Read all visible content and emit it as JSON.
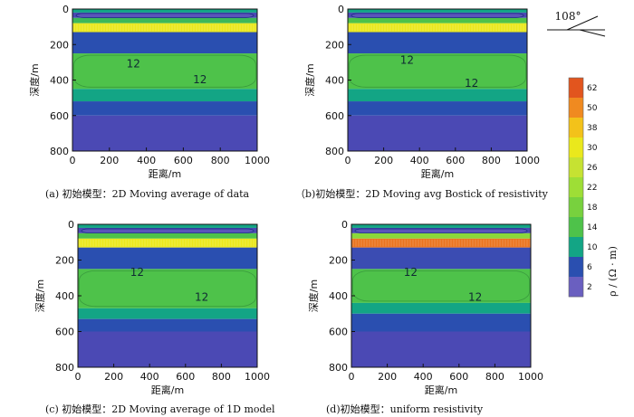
{
  "chart_data": [
    {
      "type": "heatmap",
      "caption": "(a) 初始模型：2D Moving average of data",
      "xlabel": "距离/m",
      "ylabel": "深度/m",
      "xlim": [
        0,
        1000
      ],
      "ylim": [
        0,
        800
      ],
      "xticks": [
        "0",
        "200",
        "400",
        "600",
        "800",
        "1000"
      ],
      "yticks": [
        "0",
        "200",
        "400",
        "600",
        "800"
      ],
      "layers": [
        {
          "top": 0,
          "bottom": 20,
          "resistivity": 10
        },
        {
          "top": 20,
          "bottom": 50,
          "resistivity": 4
        },
        {
          "top": 50,
          "bottom": 80,
          "resistivity": 12
        },
        {
          "top": 80,
          "bottom": 130,
          "resistivity": 30
        },
        {
          "top": 130,
          "bottom": 250,
          "resistivity": 6
        },
        {
          "top": 250,
          "bottom": 450,
          "resistivity": 14
        },
        {
          "top": 450,
          "bottom": 520,
          "resistivity": 10
        },
        {
          "top": 520,
          "bottom": 600,
          "resistivity": 6
        },
        {
          "top": 600,
          "bottom": 800,
          "resistivity": 4
        }
      ],
      "annotations": [
        {
          "x": 330,
          "y": 310,
          "text": "12"
        },
        {
          "x": 690,
          "y": 400,
          "text": "12"
        }
      ]
    },
    {
      "type": "heatmap",
      "caption": "（b)初始模型：2D Moving avg Bostick of resistivity",
      "xlabel": "距离/m",
      "ylabel": "深度/m",
      "xlim": [
        0,
        1000
      ],
      "ylim": [
        0,
        800
      ],
      "xticks": [
        "0",
        "200",
        "400",
        "600",
        "800",
        "1000"
      ],
      "yticks": [
        "0",
        "200",
        "400",
        "600",
        "800"
      ],
      "layers": [
        {
          "top": 0,
          "bottom": 20,
          "resistivity": 10
        },
        {
          "top": 20,
          "bottom": 50,
          "resistivity": 4
        },
        {
          "top": 50,
          "bottom": 80,
          "resistivity": 14
        },
        {
          "top": 80,
          "bottom": 130,
          "resistivity": 30
        },
        {
          "top": 130,
          "bottom": 250,
          "resistivity": 6
        },
        {
          "top": 250,
          "bottom": 450,
          "resistivity": 14
        },
        {
          "top": 450,
          "bottom": 520,
          "resistivity": 10
        },
        {
          "top": 520,
          "bottom": 600,
          "resistivity": 6
        },
        {
          "top": 600,
          "bottom": 800,
          "resistivity": 4
        }
      ],
      "annotations": [
        {
          "x": 330,
          "y": 290,
          "text": "12"
        },
        {
          "x": 690,
          "y": 420,
          "text": "12"
        }
      ]
    },
    {
      "type": "heatmap",
      "caption": "(c) 初始模型：2D Moving average of 1D model",
      "xlabel": "距离/m",
      "ylabel": "深度/m",
      "xlim": [
        0,
        1000
      ],
      "ylim": [
        0,
        800
      ],
      "xticks": [
        "0",
        "200",
        "400",
        "600",
        "800",
        "1000"
      ],
      "yticks": [
        "0",
        "200",
        "400",
        "600",
        "800"
      ],
      "layers": [
        {
          "top": 0,
          "bottom": 20,
          "resistivity": 10
        },
        {
          "top": 20,
          "bottom": 50,
          "resistivity": 4
        },
        {
          "top": 50,
          "bottom": 80,
          "resistivity": 14
        },
        {
          "top": 80,
          "bottom": 130,
          "resistivity": 30
        },
        {
          "top": 130,
          "bottom": 250,
          "resistivity": 6
        },
        {
          "top": 250,
          "bottom": 470,
          "resistivity": 14
        },
        {
          "top": 470,
          "bottom": 530,
          "resistivity": 10
        },
        {
          "top": 530,
          "bottom": 600,
          "resistivity": 6
        },
        {
          "top": 600,
          "bottom": 800,
          "resistivity": 4
        }
      ],
      "annotations": [
        {
          "x": 330,
          "y": 270,
          "text": "12"
        },
        {
          "x": 690,
          "y": 410,
          "text": "12"
        }
      ]
    },
    {
      "type": "heatmap",
      "caption": "(d)初始模型：uniform resistivity",
      "xlabel": "距离/m",
      "ylabel": "深度/m",
      "xlim": [
        0,
        1000
      ],
      "ylim": [
        0,
        800
      ],
      "xticks": [
        "0",
        "200",
        "400",
        "600",
        "800",
        "1000"
      ],
      "yticks": [
        "0",
        "200",
        "400",
        "600",
        "800"
      ],
      "layers": [
        {
          "top": 0,
          "bottom": 20,
          "resistivity": 10
        },
        {
          "top": 20,
          "bottom": 50,
          "resistivity": 4
        },
        {
          "top": 50,
          "bottom": 80,
          "resistivity": 20
        },
        {
          "top": 80,
          "bottom": 130,
          "resistivity": 55
        },
        {
          "top": 130,
          "bottom": 250,
          "resistivity": 5
        },
        {
          "top": 250,
          "bottom": 440,
          "resistivity": 14
        },
        {
          "top": 440,
          "bottom": 500,
          "resistivity": 10
        },
        {
          "top": 500,
          "bottom": 600,
          "resistivity": 6
        },
        {
          "top": 600,
          "bottom": 800,
          "resistivity": 4
        }
      ],
      "annotations": [
        {
          "x": 330,
          "y": 270,
          "text": "12"
        },
        {
          "x": 690,
          "y": 410,
          "text": "12"
        }
      ]
    }
  ],
  "colorbar": {
    "title": "ρ / (Ω · m)",
    "ticks": [
      "62",
      "50",
      "38",
      "30",
      "26",
      "22",
      "18",
      "14",
      "10",
      "6",
      "2"
    ],
    "colors": [
      "#e2551e",
      "#f08a20",
      "#f3c21a",
      "#eae81c",
      "#c6e232",
      "#9ede36",
      "#78d13e",
      "#4ec24a",
      "#13a585",
      "#2a4fb0",
      "#6a5fc0"
    ]
  },
  "orientation": {
    "label": "108°"
  },
  "colors": {
    "background": "#ffffff",
    "axis": "#111111"
  }
}
